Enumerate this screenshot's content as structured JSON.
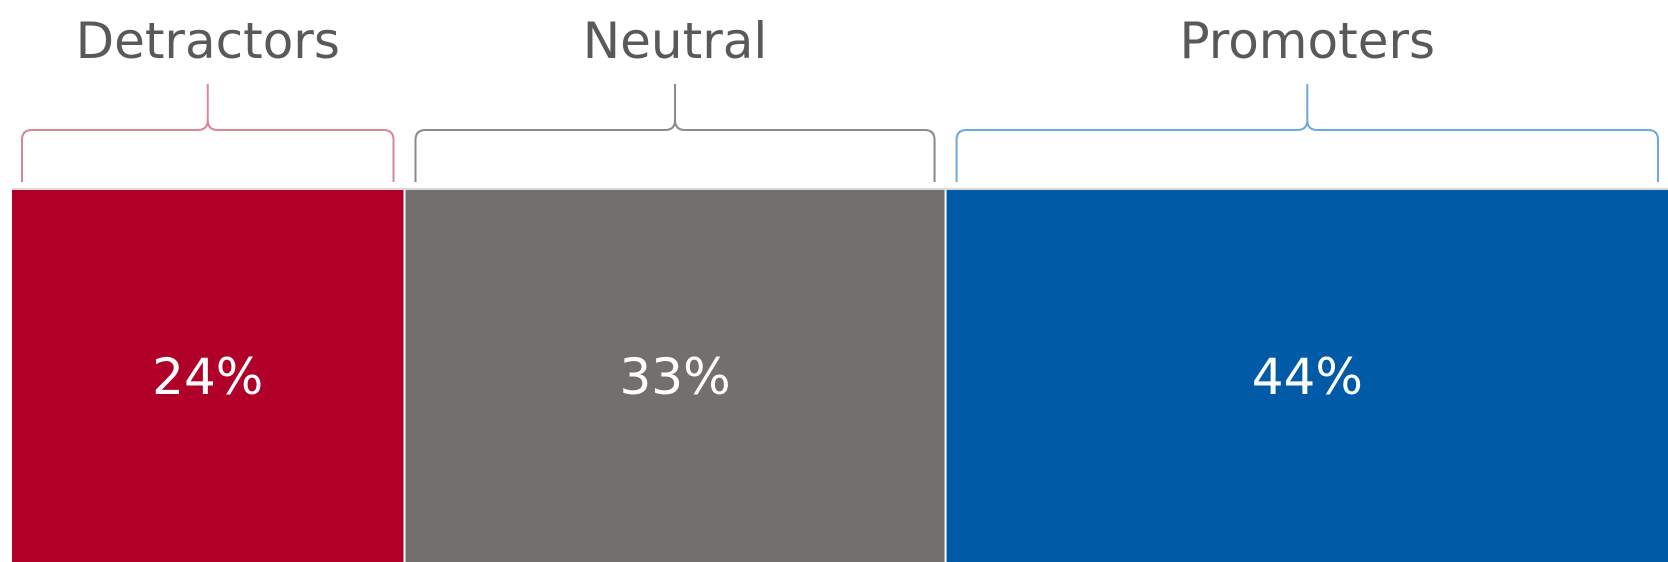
{
  "chart_data": {
    "type": "bar",
    "orientation": "horizontal-stacked",
    "categories": [
      "Detractors",
      "Neutral",
      "Promoters"
    ],
    "values": [
      24,
      33,
      44
    ],
    "data_labels": [
      "24%",
      "33%",
      "44%"
    ],
    "colors": [
      "#B0002A",
      "#736F6D",
      "#005AA5"
    ],
    "bracket_colors": [
      "#D88797",
      "#8A8A8A",
      "#6FA8DC"
    ],
    "label_color": "#595959",
    "grid": false,
    "legend": "none"
  }
}
